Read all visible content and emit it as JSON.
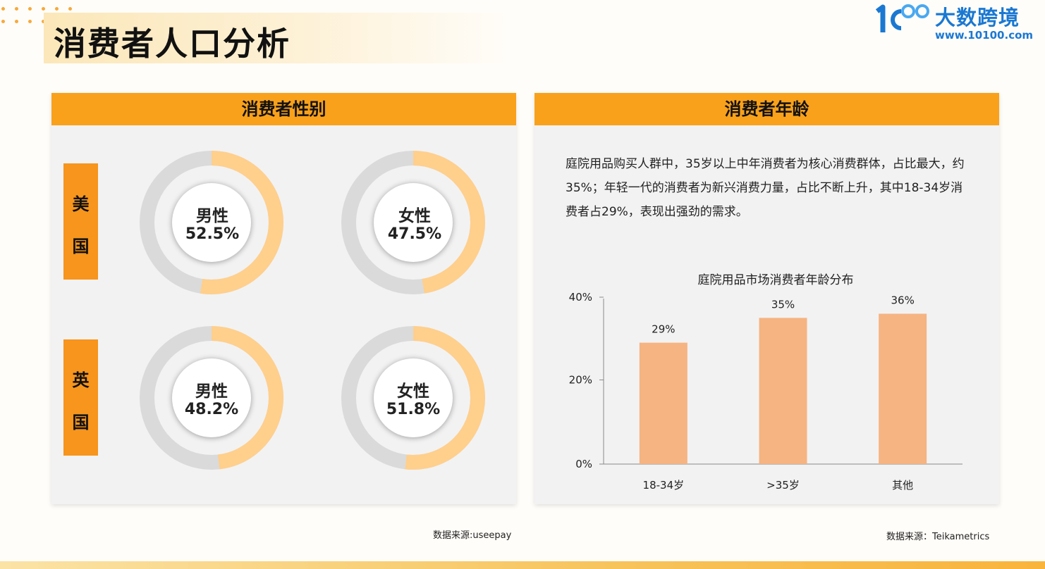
{
  "header": {
    "title": "消费者人口分析",
    "brand": "大数跨境",
    "url": "www.10100.com"
  },
  "colors": {
    "accent": "#f9a11b",
    "country_tab": "#f7951c",
    "donut_fill": "#ffcf8c",
    "donut_track": "#dadada",
    "bar": "#f5b482",
    "brand_blue": "#1a78d2"
  },
  "gender_panel": {
    "heading": "消费者性别",
    "countries": [
      {
        "name": [
          "美",
          "国"
        ],
        "items": [
          {
            "label": "男性",
            "value_text": "52.5%",
            "value": 52.5
          },
          {
            "label": "女性",
            "value_text": "47.5%",
            "value": 47.5
          }
        ]
      },
      {
        "name": [
          "英",
          "国"
        ],
        "items": [
          {
            "label": "男性",
            "value_text": "48.2%",
            "value": 48.2
          },
          {
            "label": "女性",
            "value_text": "51.8%",
            "value": 51.8
          }
        ]
      }
    ],
    "source": "数据来源:useepay"
  },
  "age_panel": {
    "heading": "消费者年龄",
    "description": "庭院用品购买人群中，35岁以上中年消费者为核心消费群体，占比最大，约35%；年轻一代的消费者为新兴消费力量，占比不断上升，其中18-34岁消费者占29%，表现出强劲的需求。",
    "source": "数据来源：Teikametrics"
  },
  "chart_data": {
    "type": "bar",
    "title": "庭院用品市场消费者年龄分布",
    "categories": [
      "18-34岁",
      ">35岁",
      "其他"
    ],
    "values": [
      29,
      35,
      36
    ],
    "data_labels": [
      "29%",
      "35%",
      "36%"
    ],
    "ylim": [
      0,
      40
    ],
    "y_ticks": [
      "0%",
      "20%",
      "40%"
    ],
    "y_tick_values": [
      0,
      20,
      40
    ],
    "grid": false
  }
}
